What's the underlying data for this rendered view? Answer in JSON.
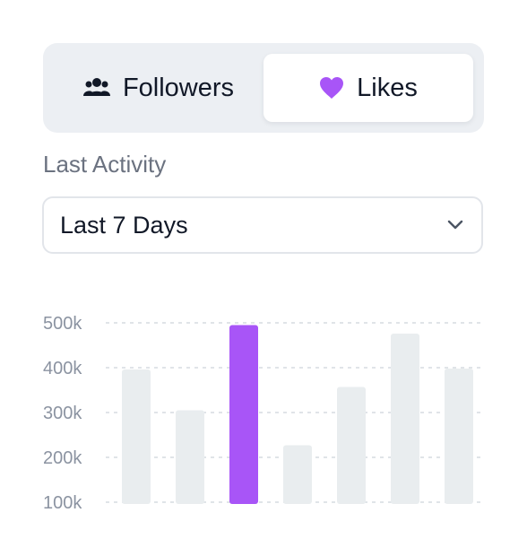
{
  "segmented": {
    "options": [
      {
        "label": "Followers",
        "icon": "users-icon",
        "selected": false
      },
      {
        "label": "Likes",
        "icon": "heart-icon",
        "selected": true
      }
    ]
  },
  "activity": {
    "label": "Last Activity",
    "selected": "Last 7 Days"
  },
  "colors": {
    "accent": "#a855f7",
    "bar": "#e9edef",
    "text": "#111827",
    "muted": "#6b7280"
  },
  "chart_data": {
    "type": "bar",
    "categories": [
      "",
      "",
      "",
      "",
      "",
      "",
      ""
    ],
    "values": [
      396,
      305,
      495,
      227,
      357,
      476,
      398
    ],
    "highlight_index": 2,
    "ylim": [
      100,
      500
    ],
    "yticks": [
      500,
      400,
      300,
      200,
      100
    ],
    "ytick_labels": [
      "500k",
      "400k",
      "300k",
      "200k",
      "100k"
    ],
    "grid": true
  }
}
